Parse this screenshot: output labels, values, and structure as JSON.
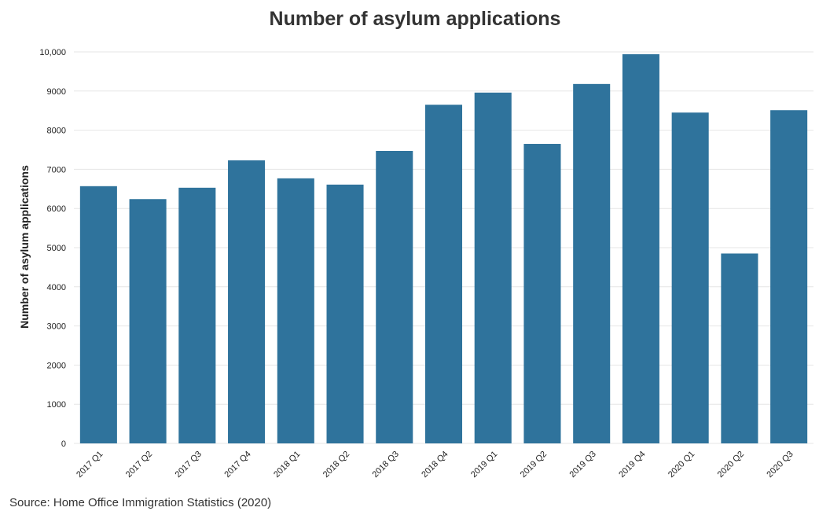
{
  "chart_data": {
    "type": "bar",
    "title": "Number of asylum applications",
    "xlabel": "",
    "ylabel": "Number of asylum applications",
    "categories": [
      "2017 Q1",
      "2017 Q2",
      "2017 Q3",
      "2017 Q4",
      "2018 Q1",
      "2018 Q2",
      "2018 Q3",
      "2018 Q4",
      "2019 Q1",
      "2019 Q2",
      "2019 Q3",
      "2019 Q4",
      "2020 Q1",
      "2020 Q2",
      "2020 Q3"
    ],
    "values": [
      6570,
      6240,
      6530,
      7230,
      6770,
      6610,
      7470,
      8650,
      8960,
      7650,
      9180,
      9940,
      8450,
      4850,
      8510
    ],
    "ylim": [
      0,
      10000
    ],
    "yticks": [
      0,
      1000,
      2000,
      3000,
      4000,
      5000,
      6000,
      7000,
      8000,
      9000,
      10000
    ],
    "ytick_labels": [
      "0",
      "1000",
      "2000",
      "3000",
      "4000",
      "5000",
      "6000",
      "7000",
      "8000",
      "9000",
      "10,000"
    ],
    "grid": true,
    "legend": "none",
    "bar_color": "#2f739c",
    "source": "Source: Home Office Immigration Statistics (2020)"
  }
}
